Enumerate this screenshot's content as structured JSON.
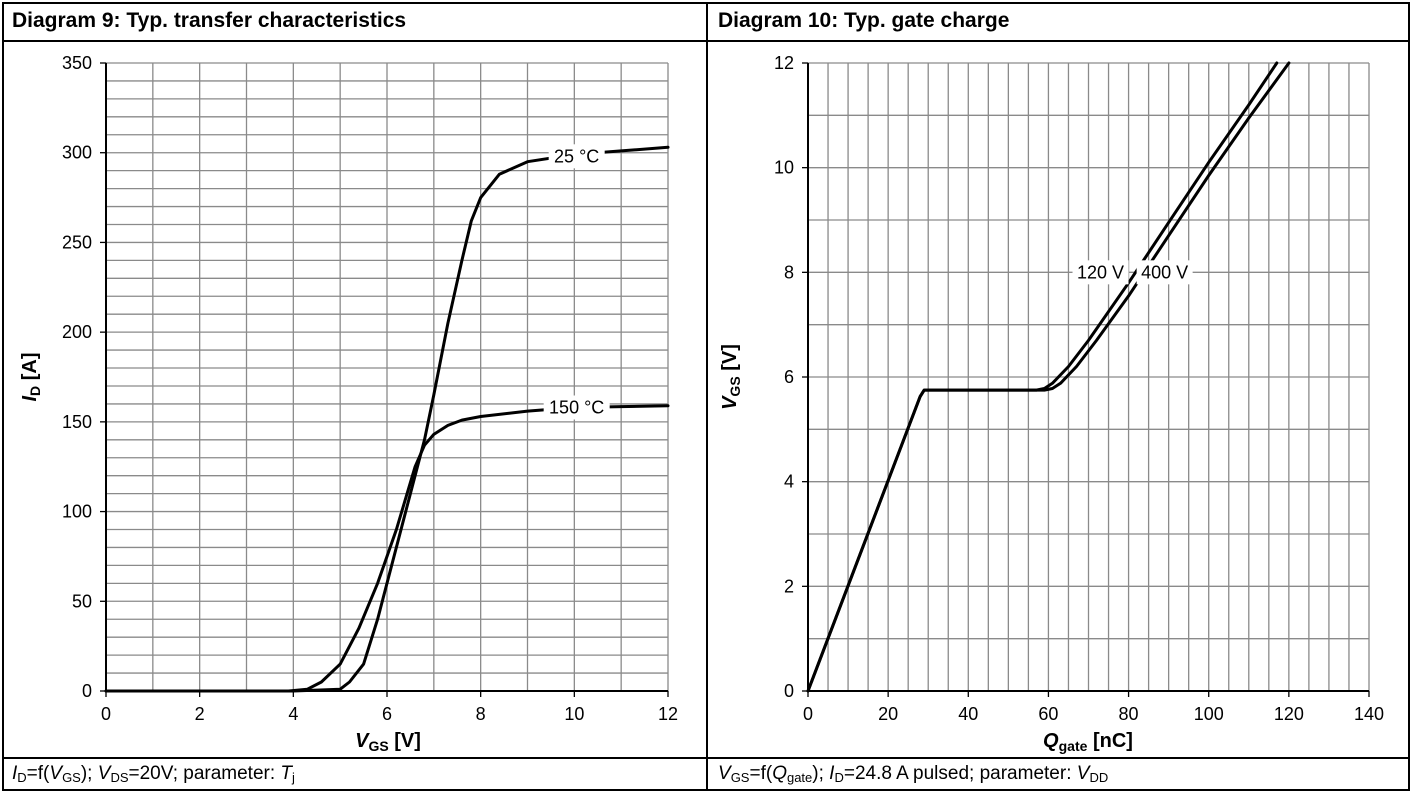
{
  "panels": [
    {
      "title": "Diagram 9: Typ. transfer characteristics",
      "caption": {
        "p1": "I",
        "s1": "D",
        "p2": "=f(",
        "p3": "V",
        "s2": "GS",
        "p4": "); ",
        "p5": "V",
        "s3": "DS",
        "p6": "=20V; parameter: ",
        "p7": "T",
        "s4": "j"
      }
    },
    {
      "title": "Diagram 10: Typ. gate charge",
      "caption": {
        "p1": "V",
        "s1": "GS",
        "p2": "=f(",
        "p3": "Q",
        "s2": "gate",
        "p4": "); ",
        "p5": "I",
        "s3": "D",
        "p6": "=24.8 A pulsed; parameter: ",
        "p7": "V",
        "s4": "DD"
      }
    }
  ],
  "chart_data": [
    {
      "type": "line",
      "title": "Diagram 9: Typ. transfer characteristics",
      "xlabel": "VGS [V]",
      "xlabel_main": "V",
      "xlabel_sub": "GS",
      "xlabel_unit": " [V]",
      "ylabel": "ID [A]",
      "ylabel_main": "I",
      "ylabel_sub": "D",
      "ylabel_unit": " [A]",
      "xlim": [
        0,
        12
      ],
      "ylim": [
        0,
        350
      ],
      "xticks": [
        0,
        2,
        4,
        6,
        8,
        10,
        12
      ],
      "yticks": [
        0,
        50,
        100,
        150,
        200,
        250,
        300,
        350
      ],
      "grid": {
        "x_minor_step": 1,
        "y_minor_step": 10
      },
      "series": [
        {
          "name": "25 °C",
          "label_at": [
            10.05,
            298
          ],
          "x": [
            0,
            4,
            5,
            5.2,
            5.5,
            5.8,
            6,
            6.4,
            6.8,
            7,
            7.3,
            7.6,
            7.8,
            8,
            8.4,
            9,
            10,
            11,
            12
          ],
          "y": [
            0,
            0,
            1,
            5,
            15,
            40,
            60,
            100,
            140,
            165,
            205,
            240,
            262,
            275,
            288,
            295,
            299,
            301,
            303
          ]
        },
        {
          "name": "150 °C",
          "label_at": [
            10.05,
            158
          ],
          "x": [
            0,
            3.9,
            4.3,
            4.6,
            5,
            5.4,
            5.8,
            6.2,
            6.6,
            6.8,
            7,
            7.3,
            7.6,
            8,
            9,
            10,
            11,
            12
          ],
          "y": [
            0,
            0,
            1,
            5,
            15,
            35,
            60,
            90,
            125,
            137,
            143,
            148,
            151,
            153,
            156,
            158,
            158.5,
            159
          ]
        }
      ]
    },
    {
      "type": "line",
      "title": "Diagram 10: Typ. gate charge",
      "xlabel": "Qgate [nC]",
      "xlabel_main": "Q",
      "xlabel_sub": "gate",
      "xlabel_unit": " [nC]",
      "ylabel": "VGS [V]",
      "ylabel_main": "V",
      "ylabel_sub": "GS",
      "ylabel_unit": " [V]",
      "xlim": [
        0,
        140
      ],
      "ylim": [
        0,
        12
      ],
      "xticks": [
        0,
        20,
        40,
        60,
        80,
        100,
        120,
        140
      ],
      "yticks": [
        0,
        2,
        4,
        6,
        8,
        10,
        12
      ],
      "grid": {
        "x_minor_step": 5,
        "y_minor_step": 1
      },
      "series": [
        {
          "name": "120 V",
          "label_at": [
            73,
            8
          ],
          "x": [
            0,
            28,
            29,
            57,
            59,
            61,
            65,
            70,
            80,
            90,
            100,
            110,
            117
          ],
          "y": [
            0,
            5.63,
            5.75,
            5.75,
            5.78,
            5.88,
            6.2,
            6.7,
            7.8,
            8.95,
            10.1,
            11.2,
            12
          ]
        },
        {
          "name": "400 V",
          "label_at": [
            89,
            8
          ],
          "x": [
            0,
            28,
            29,
            59,
            61,
            63,
            67,
            72,
            80,
            90,
            100,
            110,
            120
          ],
          "y": [
            0,
            5.63,
            5.75,
            5.75,
            5.78,
            5.88,
            6.2,
            6.7,
            7.55,
            8.7,
            9.85,
            10.95,
            12
          ]
        }
      ]
    }
  ]
}
